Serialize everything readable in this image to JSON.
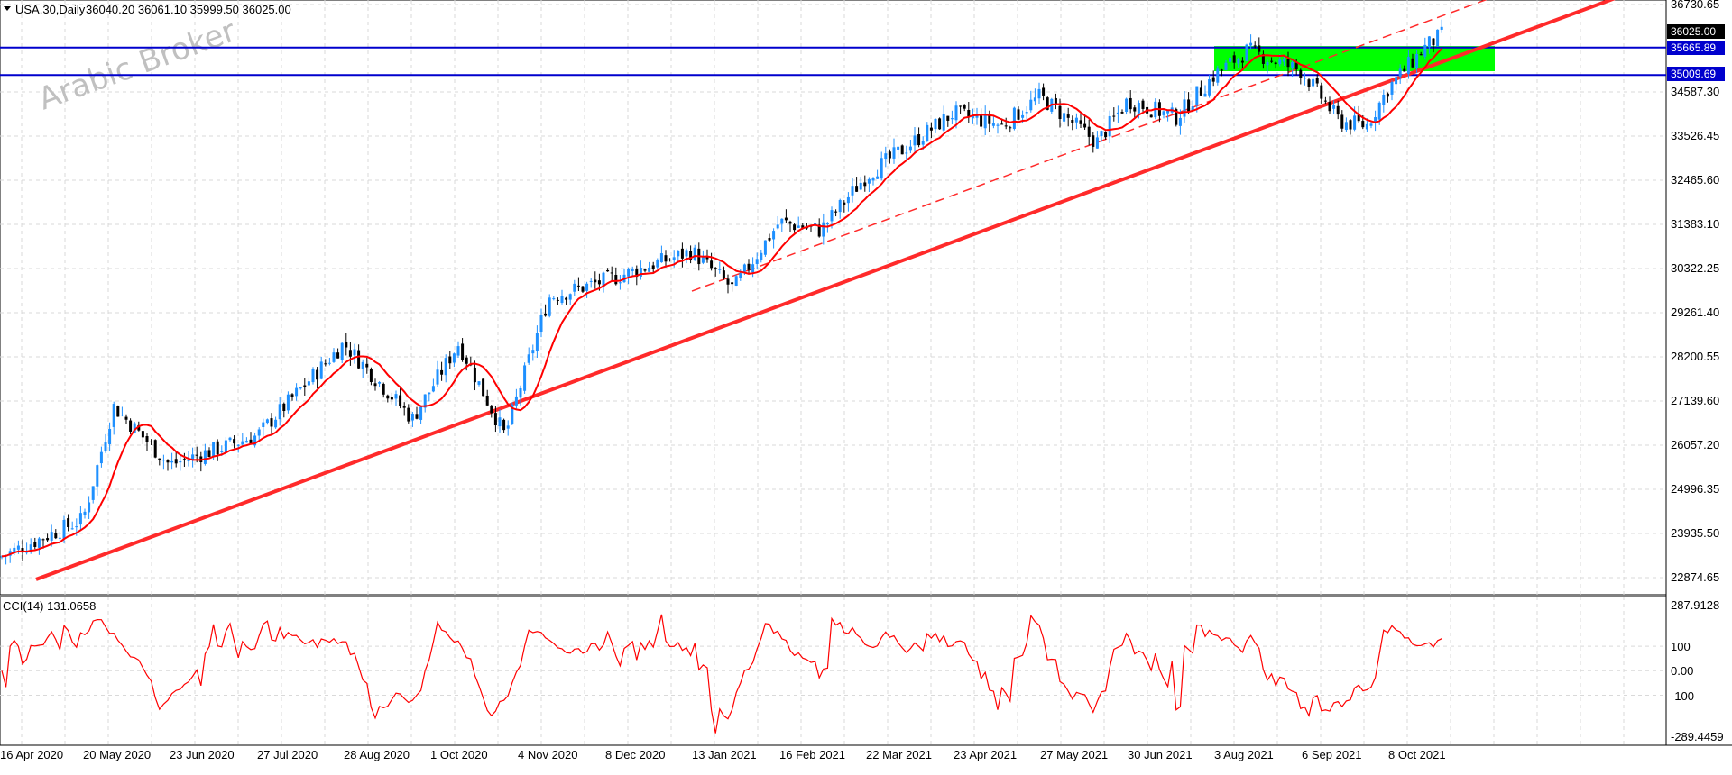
{
  "header": {
    "symbol": "USA.30,Daily",
    "ohlc": "36040.20 36061.10 35999.50 36025.00"
  },
  "watermark": "Arabic Broker",
  "colors": {
    "bull": "#1e90ff",
    "bear": "#000000",
    "ma": "#ff0000",
    "trendline": "#ff2a2a",
    "level": "#0000cd",
    "zone": "#00ff00",
    "grid": "#d9d9d9",
    "cci": "#ff0000"
  },
  "price_axis": {
    "labels": [
      "36730.65",
      "34587.30",
      "33526.45",
      "32465.60",
      "31383.10",
      "30322.25",
      "29261.40",
      "28200.55",
      "27139.60",
      "26057.20",
      "24996.35",
      "23935.50",
      "22874.65"
    ],
    "current_tag": "36025.00"
  },
  "levels": [
    {
      "label": "35665.89",
      "value": 35665.89
    },
    {
      "label": "35009.69",
      "value": 35009.69
    }
  ],
  "time_axis": {
    "labels": [
      "16 Apr 2020",
      "20 May 2020",
      "23 Jun 2020",
      "27 Jul 2020",
      "28 Aug 2020",
      "1 Oct 2020",
      "4 Nov 2020",
      "8 Dec 2020",
      "13 Jan 2021",
      "16 Feb 2021",
      "22 Mar 2021",
      "23 Apr 2021",
      "27 May 2021",
      "30 Jun 2021",
      "3 Aug 2021",
      "6 Sep 2021",
      "8 Oct 2021"
    ]
  },
  "indicator": {
    "label": "CCI(14) 131.0658",
    "axis_labels": [
      "287.9128",
      "100",
      "0.00",
      "-100",
      "-289.4459"
    ]
  },
  "chart_data": {
    "type": "candlestick",
    "title": "USA.30,Daily",
    "ylim": [
      22600,
      36800
    ],
    "trendline_support": {
      "from": [
        "16 Apr 2020",
        22650
      ],
      "to": [
        "8 Oct 2021",
        34850
      ]
    },
    "channel_line": {
      "from": [
        "13 Jan 2021",
        29850
      ],
      "to": [
        "8 Oct 2021",
        35950
      ]
    },
    "resistance_zone": {
      "from": "3 Aug 2021",
      "to": "8 Oct 2021",
      "low": 35100,
      "high": 35700
    },
    "price_path": [
      [
        "16 Apr 2020",
        23500
      ],
      [
        "20 May 2020",
        24400
      ],
      [
        "1 Jun 2020",
        27100
      ],
      [
        "23 Jun 2020",
        25700
      ],
      [
        "27 Jul 2020",
        26400
      ],
      [
        "28 Aug 2020",
        28600
      ],
      [
        "24 Sep 2020",
        26800
      ],
      [
        "12 Oct 2020",
        28600
      ],
      [
        "30 Oct 2020",
        26400
      ],
      [
        "16 Nov 2020",
        29700
      ],
      [
        "8 Dec 2020",
        30100
      ],
      [
        "13 Jan 2021",
        30800
      ],
      [
        "29 Jan 2021",
        29900
      ],
      [
        "16 Feb 2021",
        31500
      ],
      [
        "4 Mar 2021",
        31300
      ],
      [
        "22 Mar 2021",
        32600
      ],
      [
        "23 Apr 2021",
        34100
      ],
      [
        "12 May 2021",
        33800
      ],
      [
        "27 May 2021",
        34500
      ],
      [
        "18 Jun 2021",
        33400
      ],
      [
        "30 Jun 2021",
        34400
      ],
      [
        "19 Jul 2021",
        34000
      ],
      [
        "3 Aug 2021",
        35000
      ],
      [
        "16 Aug 2021",
        35600
      ],
      [
        "6 Sep 2021",
        35100
      ],
      [
        "20 Sep 2021",
        33900
      ],
      [
        "30 Sep 2021",
        33800
      ],
      [
        "8 Oct 2021",
        34700
      ],
      [
        "22 Oct 2021",
        35700
      ],
      [
        "29 Oct 2021",
        36025
      ]
    ],
    "cci_last": 131.0658,
    "cci_ylim": [
      -289.4459,
      287.9128
    ]
  }
}
